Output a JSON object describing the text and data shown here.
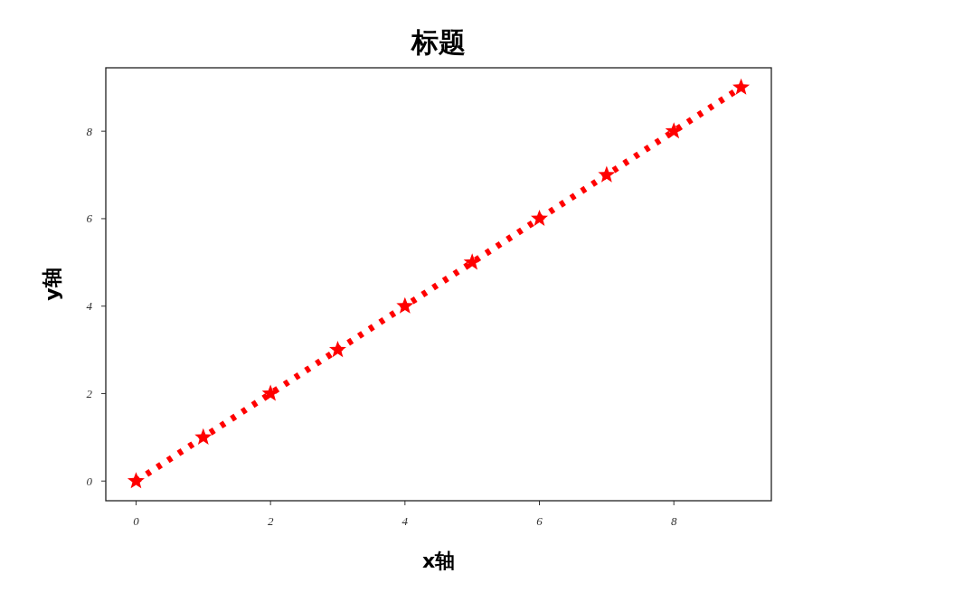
{
  "chart_data": {
    "type": "line",
    "title": "标题",
    "xlabel": "x轴",
    "ylabel": "y轴",
    "x": [
      0,
      1,
      2,
      3,
      4,
      5,
      6,
      7,
      8,
      9
    ],
    "series": [
      {
        "color": "#ff0000",
        "values": [
          0,
          1,
          2,
          3,
          4,
          5,
          6,
          7,
          8,
          9
        ]
      }
    ],
    "xlim": [
      -0.45,
      9.45
    ],
    "ylim": [
      -0.45,
      9.45
    ],
    "xticks": [
      0,
      2,
      4,
      6,
      8
    ],
    "yticks": [
      0,
      2,
      4,
      6,
      8
    ],
    "marker": "star",
    "line_style": "dotted"
  }
}
